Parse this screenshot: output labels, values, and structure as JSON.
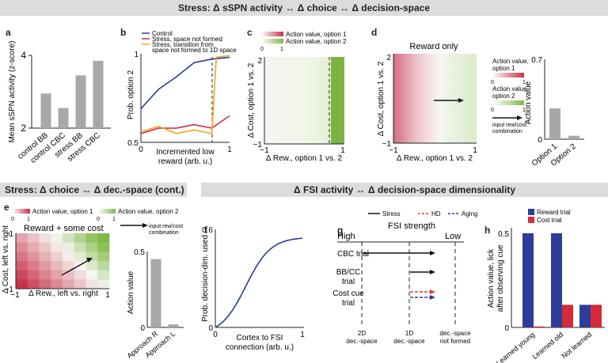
{
  "banners": {
    "top": "Stress: Δ sSPN activity ↔ Δ choice ↔ Δ decision-space",
    "bottom_left": "Stress: Δ choice ↔ Δ dec.-space (cont.)",
    "bottom_right": "Δ FSI activity ↔ Δ decision-space dimensionality"
  },
  "letters": [
    "a",
    "b",
    "c",
    "d",
    "e",
    "f",
    "g",
    "h"
  ],
  "colors": {
    "red": "#c8314a",
    "green": "#7fb946",
    "blue": "#2a3c9a",
    "orange": "#f2a51f",
    "bar_grey": "#a8a8a8",
    "bar_red": "#d42a3a",
    "bar_blue": "#2d3b9b"
  },
  "panel_a": {
    "ylabel": "Mean sSPN activity (z-score)",
    "chart_data": {
      "type": "bar",
      "categories": [
        "control BB",
        "control CBC",
        "stress BB",
        "stress CBC"
      ],
      "values": [
        2.95,
        2.55,
        3.45,
        3.85
      ],
      "ylim": [
        2,
        4
      ],
      "yticks": [
        "2",
        "4"
      ]
    }
  },
  "panel_b": {
    "ylabel": "Prob. option 2",
    "xlabel": "Incremented low reward (arb. u.)",
    "yticks": [
      "0.5",
      "1"
    ],
    "xticks": [
      "0",
      "1"
    ],
    "legend": [
      "Control",
      "Stress, space not formed",
      "Stress, transition from space not formed to 1D space"
    ],
    "chart_data": {
      "type": "line",
      "x": [
        0,
        0.2,
        0.4,
        0.6,
        0.8,
        1.0
      ],
      "series": [
        {
          "name": "Control",
          "values": [
            0.69,
            0.8,
            0.87,
            0.95,
            0.97,
            0.98
          ]
        },
        {
          "name": "Stress, space not formed",
          "values": [
            0.55,
            0.58,
            0.58,
            0.6,
            0.58,
            0.65
          ]
        },
        {
          "name": "Stress, transition from space not formed to 1D space",
          "values": [
            0.56,
            0.59,
            0.55,
            0.57,
            0.55,
            0.99
          ]
        }
      ],
      "ylim": [
        0.5,
        1
      ],
      "xlim": [
        0,
        1
      ],
      "dashed_x": 0.8
    }
  },
  "panel_c": {
    "legend": [
      "Action value, option 1",
      "Action value, option 2"
    ],
    "cbar_ticks": [
      "0",
      "1"
    ],
    "xlabel": "Δ Rew., option 1 vs. 2",
    "ylabel": "Δ Cost, option 1 vs. 2",
    "xticks": [
      "−1",
      "1"
    ],
    "yticks": [
      "−1",
      "2"
    ]
  },
  "panel_d": {
    "title": "Reward only",
    "xlabel": "Δ Rew., option 1 vs. 2",
    "ylabel": "Δ Cost, option 1 vs. 2",
    "xticks": [
      "−1",
      "1"
    ],
    "yticks": [
      "−1",
      "2"
    ],
    "cbar1_label": "Action value, option 1",
    "cbar2_label": "Action value, option 2",
    "cbar_ticks": [
      "0",
      "1"
    ],
    "arrow_label": "input rew/cost combination",
    "bar_ylabel": "Action value",
    "chart_data": {
      "type": "bar",
      "categories": [
        "Option 1",
        "Option 2"
      ],
      "values": [
        0.27,
        0.03
      ],
      "ylim": [
        0,
        0.7
      ],
      "yticks": [
        "0",
        "0.7"
      ]
    }
  },
  "panel_e": {
    "legend": [
      "Action value, option 1",
      "Action value, option 2"
    ],
    "cbar_ticks": [
      "0",
      "1"
    ],
    "title": "Reward + some cost",
    "arrow_label": "input rew/cost combination",
    "xlabel": "Δ Rew., left vs. right",
    "ylabel": "Δ Cost, left vs. right",
    "xticks": [
      "−1",
      "1"
    ],
    "yticks": [
      "−1",
      "1"
    ],
    "bar_ylabel": "Action value",
    "chart_data": {
      "type": "bar",
      "categories": [
        "Approach R",
        "Approach L"
      ],
      "values": [
        0.45,
        0.02
      ],
      "ylim": [
        0,
        0.5
      ],
      "yticks": [
        "0",
        "0.5"
      ]
    }
  },
  "panel_f": {
    "ylabel": "Prob. decision-dim. used",
    "xlabel": "Cortex to FSI connection (arb. u.)",
    "yticks": [
      "0",
      "0.6"
    ],
    "xticks": [
      "0",
      "1"
    ],
    "chart_data": {
      "type": "line",
      "x": [
        0,
        0.1,
        0.2,
        0.3,
        0.4,
        0.5,
        0.6,
        0.7,
        0.8,
        0.9,
        1.0
      ],
      "series": [
        {
          "values": [
            0,
            0.01,
            0.08,
            0.2,
            0.31,
            0.39,
            0.45,
            0.49,
            0.52,
            0.54,
            0.56
          ]
        }
      ],
      "ylim": [
        0,
        0.6
      ],
      "xlim": [
        0,
        1
      ]
    }
  },
  "panel_g": {
    "legend": [
      "Stress",
      "HD",
      "Aging"
    ],
    "title": "FSI strength",
    "high": "High",
    "low": "Low",
    "rows": [
      "CBC trial",
      "BB/CC trial",
      "Cost cue trial"
    ],
    "cols": [
      "2D dec.-space",
      "1D dec.-space",
      "dec.-space not formed"
    ]
  },
  "panel_h": {
    "legend": [
      "Reward trial",
      "Cost trial"
    ],
    "ylabel": "Action value, lick after observing cue",
    "yticks": [
      "0",
      "0.5"
    ],
    "chart_data": {
      "type": "bar",
      "categories": [
        "Learned young",
        "Learned old",
        "Not learned"
      ],
      "series": [
        {
          "name": "Reward trial",
          "values": [
            0.5,
            0.5,
            0.12
          ]
        },
        {
          "name": "Cost trial",
          "values": [
            0.005,
            0.12,
            0.12
          ]
        }
      ],
      "ylim": [
        0,
        0.55
      ]
    }
  }
}
